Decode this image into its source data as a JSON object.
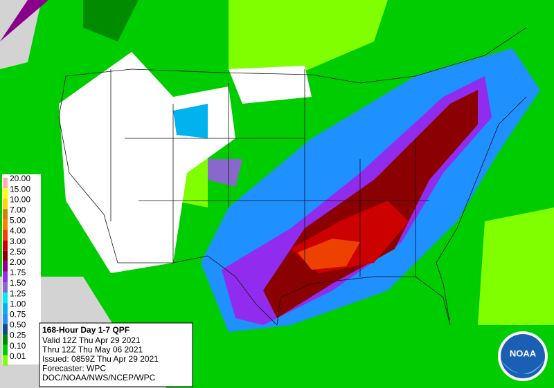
{
  "legend": [
    {
      "label": "20.00",
      "color": "#ffaeb9"
    },
    {
      "label": "15.00",
      "color": "#ffff00"
    },
    {
      "label": "10.00",
      "color": "#ffd700"
    },
    {
      "label": "7.00",
      "color": "#cd8500"
    },
    {
      "label": "5.00",
      "color": "#ff7f00"
    },
    {
      "label": "4.00",
      "color": "#ee4000"
    },
    {
      "label": "3.00",
      "color": "#cd0000"
    },
    {
      "label": "2.50",
      "color": "#8b0000"
    },
    {
      "label": "2.00",
      "color": "#8b008b"
    },
    {
      "label": "1.75",
      "color": "#912cee"
    },
    {
      "label": "1.50",
      "color": "#8968cd"
    },
    {
      "label": "1.25",
      "color": "#00eeee"
    },
    {
      "label": "1.00",
      "color": "#00b2ee"
    },
    {
      "label": "0.75",
      "color": "#1e90ff"
    },
    {
      "label": "0.50",
      "color": "#104e8b"
    },
    {
      "label": "0.25",
      "color": "#008b00"
    },
    {
      "label": "0.10",
      "color": "#00cd00"
    },
    {
      "label": "0.01",
      "color": "#7fff00"
    }
  ],
  "info": {
    "title": "168-Hour Day 1-7 QPF",
    "lines": [
      "Valid 12Z Thu Apr 29 2021",
      "Thru 12Z Thu May 06 2021",
      "Issued: 0859Z Thu Apr 29 2021",
      "Forecaster: WPC",
      "DOC/NOAA/NWS/NCEP/WPC"
    ]
  },
  "logo": {
    "label": "NOAA"
  }
}
